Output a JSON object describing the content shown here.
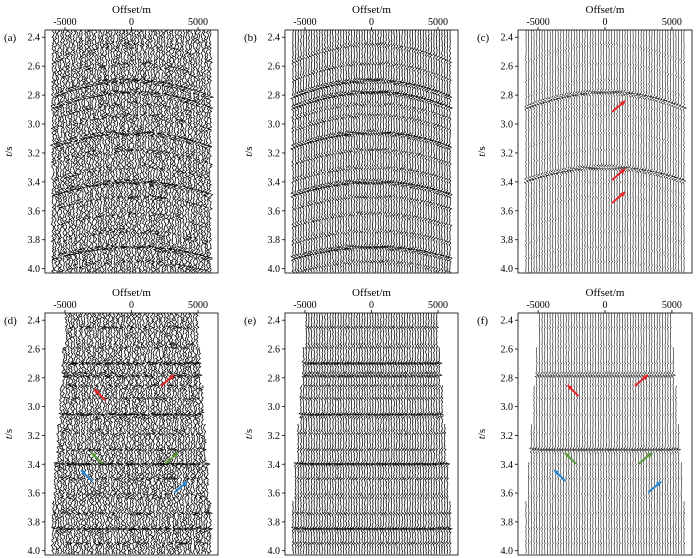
{
  "axes": {
    "x_title": "Offset/m",
    "y_title_italic": "t",
    "y_title_unit": "/s",
    "x_ticks": [
      {
        "value": -5000,
        "label": "-5000"
      },
      {
        "value": 0,
        "label": "0"
      },
      {
        "value": 5000,
        "label": "5000"
      }
    ],
    "y_ticks": [
      {
        "value": 2.4,
        "label": "2.4"
      },
      {
        "value": 2.6,
        "label": "2.6"
      },
      {
        "value": 2.8,
        "label": "2.8"
      },
      {
        "value": 3.0,
        "label": "3.0"
      },
      {
        "value": 3.2,
        "label": "3.2"
      },
      {
        "value": 3.4,
        "label": "3.4"
      },
      {
        "value": 3.6,
        "label": "3.6"
      },
      {
        "value": 3.8,
        "label": "3.8"
      },
      {
        "value": 4.0,
        "label": "4.0"
      }
    ],
    "x_range": [
      -6500,
      6500
    ],
    "y_range": [
      2.35,
      4.03
    ]
  },
  "colors": {
    "wiggle": "#000000",
    "arrow_red": "#e8262a",
    "arrow_green": "#5a9a3c",
    "arrow_blue": "#2a86d0"
  },
  "panels": [
    {
      "label": "(a)",
      "style": "noisy_hyperbolic",
      "arrows": []
    },
    {
      "label": "(b)",
      "style": "clean_hyperbolic",
      "arrows": []
    },
    {
      "label": "(c)",
      "style": "sparse_hyperbolic",
      "arrows": [
        {
          "color": "red",
          "offset": 1500,
          "t": 2.84
        },
        {
          "color": "red",
          "offset": 1500,
          "t": 3.31
        },
        {
          "color": "red",
          "offset": 1500,
          "t": 3.47
        }
      ]
    },
    {
      "label": "(d)",
      "style": "noisy_flat",
      "arrows": [
        {
          "color": "red",
          "offset": -2800,
          "t": 2.88
        },
        {
          "color": "red",
          "offset": 3200,
          "t": 2.78
        },
        {
          "color": "green",
          "offset": -3000,
          "t": 3.32
        },
        {
          "color": "green",
          "offset": 3500,
          "t": 3.32
        },
        {
          "color": "blue",
          "offset": -3800,
          "t": 3.44
        },
        {
          "color": "blue",
          "offset": 4200,
          "t": 3.52
        }
      ]
    },
    {
      "label": "(e)",
      "style": "clean_flat",
      "arrows": []
    },
    {
      "label": "(f)",
      "style": "sparse_flat",
      "arrows": [
        {
          "color": "red",
          "offset": -2800,
          "t": 2.85
        },
        {
          "color": "red",
          "offset": 3200,
          "t": 2.78
        },
        {
          "color": "green",
          "offset": -3000,
          "t": 3.32
        },
        {
          "color": "green",
          "offset": 3500,
          "t": 3.32
        },
        {
          "color": "blue",
          "offset": -3800,
          "t": 3.44
        },
        {
          "color": "blue",
          "offset": 4200,
          "t": 3.52
        }
      ]
    }
  ]
}
